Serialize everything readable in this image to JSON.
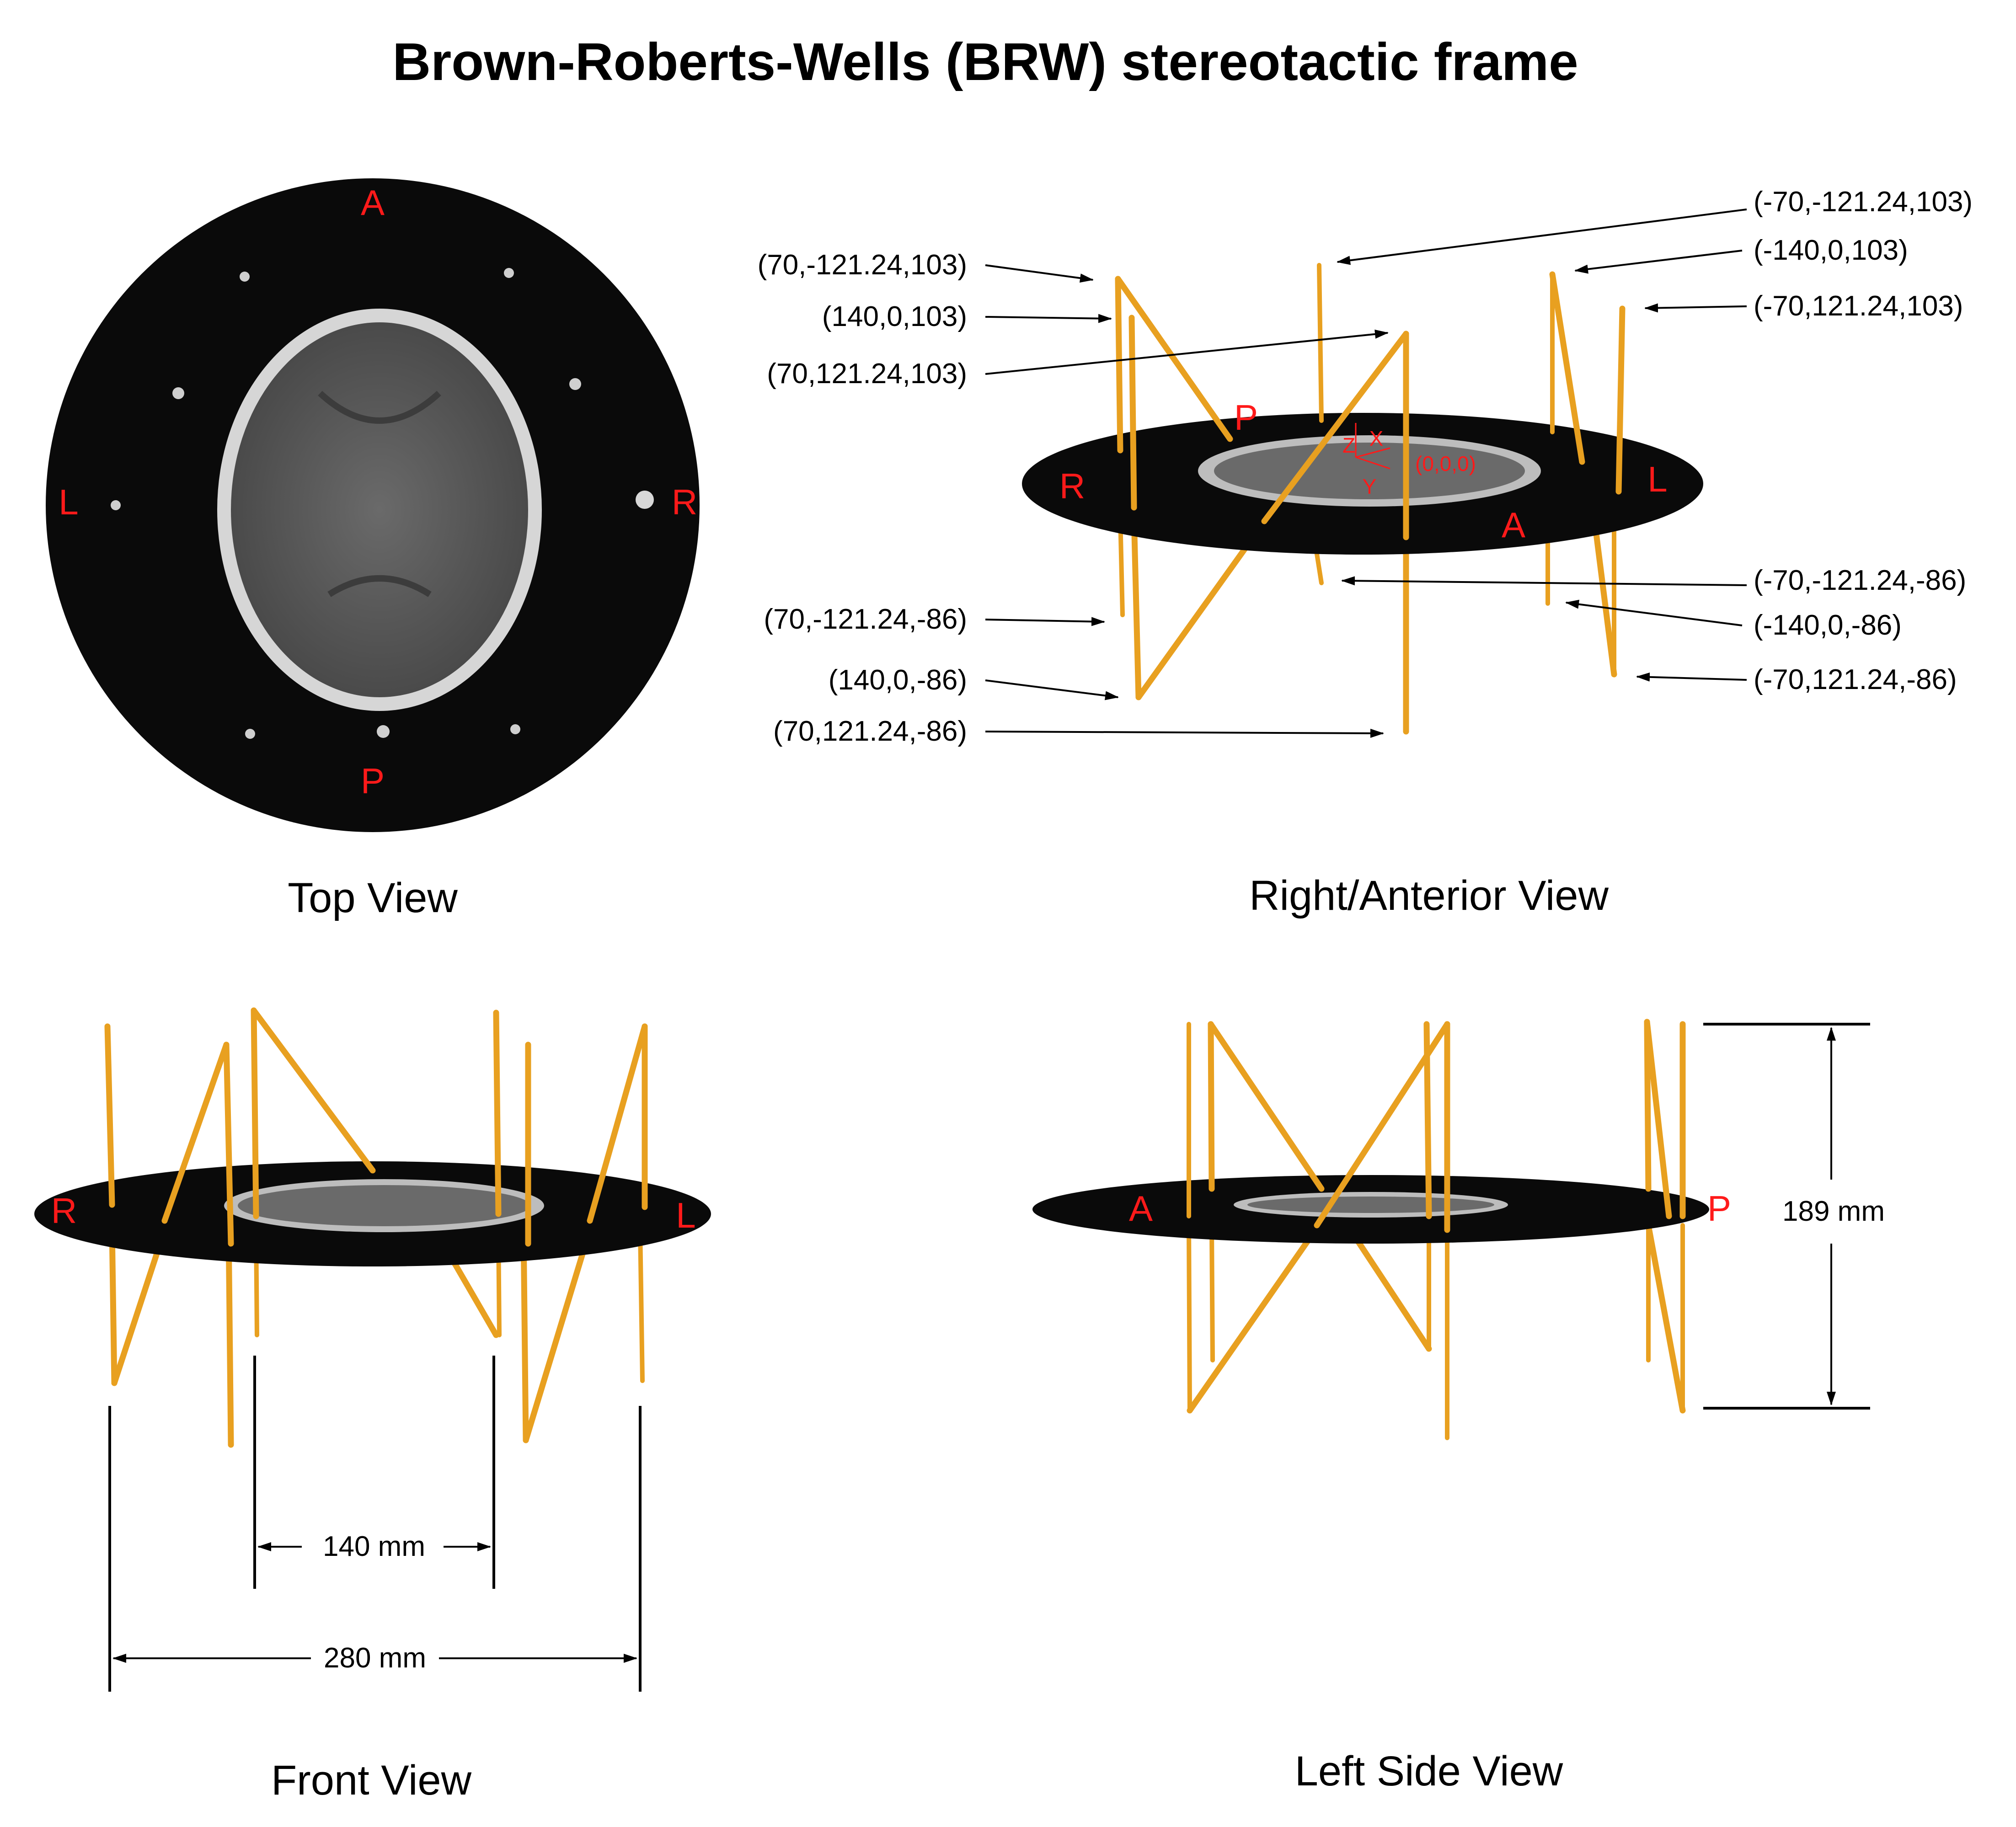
{
  "title": "Brown-Roberts-Wells (BRW) stereotactic frame",
  "captions": {
    "top": "Top View",
    "right_anterior": "Right/Anterior View",
    "front": "Front View",
    "left_side": "Left Side View"
  },
  "orientation": {
    "anterior": "A",
    "posterior": "P",
    "left": "L",
    "right": "R"
  },
  "axes": {
    "x": "X",
    "y": "Y",
    "z": "Z",
    "origin": "(0,0,0)"
  },
  "coordinates_left": [
    "(70,-121.24,103)",
    "(140,0,103)",
    "(70,121.24,103)",
    "(70,-121.24,-86)",
    "(140,0,-86)",
    "(70,121.24,-86)"
  ],
  "coordinates_right": [
    "(-70,-121.24,103)",
    "(-140,0,103)",
    "(-70,121.24,103)",
    "(-70,-121.24,-86)",
    "(-140,0,-86)",
    "(-70,121.24,-86)"
  ],
  "dimensions": {
    "inner": "140 mm",
    "outer": "280 mm",
    "height": "189 mm"
  },
  "colors": {
    "rod": "#e8a020",
    "label": "#ff1a1a",
    "disc": "#0a0a0a"
  }
}
